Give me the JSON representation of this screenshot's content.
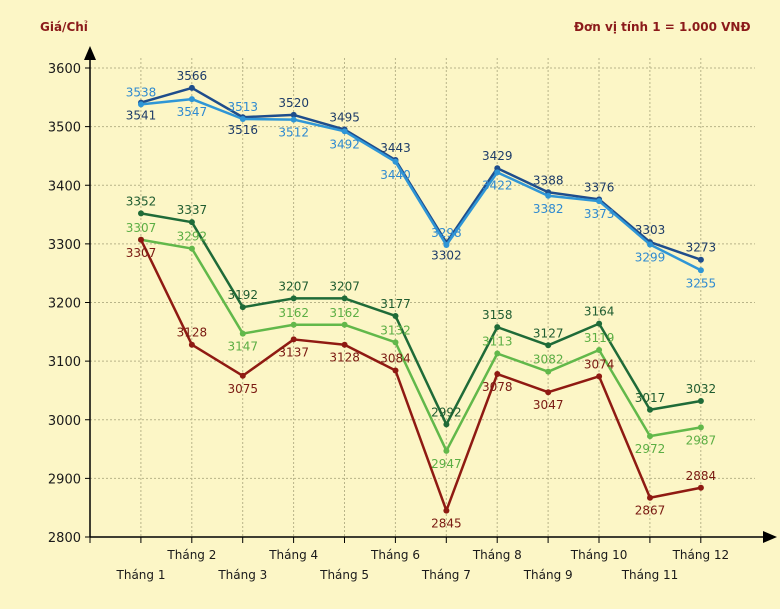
{
  "chart_data": {
    "type": "line",
    "ylabel": "Giá/Chỉ",
    "unit_note": "Đơn vị tính 1 = 1.000 VNĐ",
    "ylim": [
      2800,
      3600
    ],
    "yticks": [
      2800,
      2900,
      3000,
      3100,
      3200,
      3300,
      3400,
      3500,
      3600
    ],
    "categories": [
      "Tháng 1",
      "Tháng 2",
      "Tháng 3",
      "Tháng 4",
      "Tháng 5",
      "Tháng 6",
      "Tháng 7",
      "Tháng 8",
      "Tháng 9",
      "Tháng 10",
      "Tháng 11",
      "Tháng 12"
    ],
    "series": [
      {
        "name": "series-navy",
        "color": "#1e4d8c",
        "values": [
          3541,
          3566,
          3516,
          3520,
          3495,
          3443,
          3302,
          3429,
          3388,
          3376,
          3303,
          3273
        ]
      },
      {
        "name": "series-sky",
        "color": "#2f96d6",
        "values": [
          3538,
          3547,
          3513,
          3512,
          3492,
          3440,
          3298,
          3422,
          3382,
          3373,
          3299,
          3255
        ]
      },
      {
        "name": "series-darkgreen",
        "color": "#1f6b38",
        "values": [
          3352,
          3337,
          3192,
          3207,
          3207,
          3177,
          2992,
          3158,
          3127,
          3164,
          3017,
          3032
        ]
      },
      {
        "name": "series-lightgreen",
        "color": "#62b84a",
        "values": [
          3307,
          3292,
          3147,
          3162,
          3162,
          3132,
          2947,
          3113,
          3082,
          3119,
          2972,
          2987
        ]
      },
      {
        "name": "series-darkred",
        "color": "#8f1a12",
        "values": [
          3307,
          3128,
          3075,
          3137,
          3128,
          3084,
          2845,
          3078,
          3047,
          3074,
          2867,
          2884
        ]
      }
    ]
  }
}
